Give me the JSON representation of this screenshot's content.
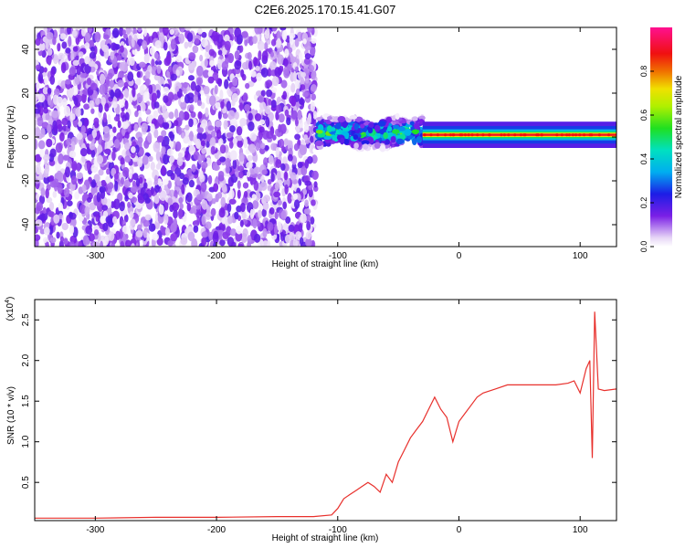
{
  "chart_data": [
    {
      "type": "heatmap",
      "title": "C2E6.2025.170.15.41.G07",
      "xlabel": "Height of straight line (km)",
      "ylabel": "Frequency (Hz)",
      "xlim": [
        -350,
        130
      ],
      "ylim": [
        -50,
        50
      ],
      "x_ticks": [
        -300,
        -200,
        -100,
        0,
        100
      ],
      "y_ticks": [
        -40,
        -20,
        0,
        20,
        40
      ],
      "colorbar": {
        "label": "Normalized spectral amplitude",
        "range": [
          0,
          1
        ],
        "ticks": [
          0.0,
          0.2,
          0.4,
          0.6,
          0.8
        ]
      },
      "features": [
        {
          "x_range": [
            -350,
            -118
          ],
          "y_range": [
            -50,
            50
          ],
          "amplitude": 0.1
        },
        {
          "x_range": [
            -118,
            -30
          ],
          "y_center": 2,
          "y_spread": 7,
          "amplitude": 0.45
        },
        {
          "x_range": [
            -30,
            130
          ],
          "y_center": 1,
          "y_spread": 1.5,
          "amplitude": 0.9
        }
      ]
    },
    {
      "type": "line",
      "xlabel": "Height of straight line (km)",
      "ylabel": "SNR (10 * v/v)",
      "y_multiplier_label": "(x10",
      "y_multiplier_exp": "4",
      "xlim": [
        -350,
        130
      ],
      "ylim": [
        0.03,
        2.75
      ],
      "x_ticks": [
        -300,
        -200,
        -100,
        0,
        100
      ],
      "y_ticks": [
        0.5,
        1.0,
        1.5,
        2.0,
        2.5
      ],
      "series": [
        {
          "color": "#e8302c",
          "x": [
            -350,
            -300,
            -250,
            -200,
            -150,
            -120,
            -105,
            -100,
            -95,
            -90,
            -85,
            -80,
            -75,
            -70,
            -65,
            -60,
            -55,
            -50,
            -45,
            -40,
            -35,
            -30,
            -25,
            -20,
            -15,
            -10,
            -5,
            0,
            5,
            10,
            15,
            20,
            30,
            40,
            50,
            60,
            70,
            80,
            90,
            95,
            100,
            105,
            108,
            110,
            112,
            115,
            120,
            130
          ],
          "y": [
            0.06,
            0.06,
            0.07,
            0.07,
            0.08,
            0.08,
            0.1,
            0.18,
            0.3,
            0.35,
            0.4,
            0.45,
            0.5,
            0.45,
            0.38,
            0.6,
            0.5,
            0.75,
            0.9,
            1.05,
            1.15,
            1.25,
            1.4,
            1.55,
            1.4,
            1.3,
            1.0,
            1.25,
            1.35,
            1.45,
            1.55,
            1.6,
            1.65,
            1.7,
            1.7,
            1.7,
            1.7,
            1.7,
            1.72,
            1.75,
            1.6,
            1.9,
            2.0,
            0.8,
            2.6,
            1.65,
            1.63,
            1.65
          ]
        }
      ]
    }
  ]
}
